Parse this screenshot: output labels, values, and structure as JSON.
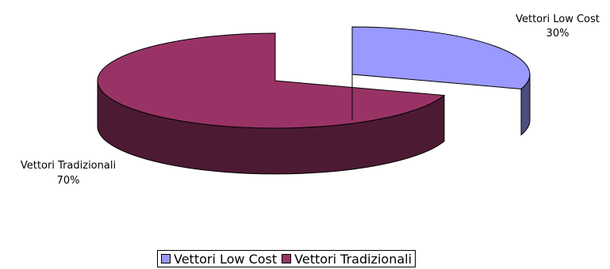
{
  "chart_data": {
    "type": "pie",
    "title": "",
    "is_3d": true,
    "slices": [
      {
        "label": "Vettori Low Cost",
        "value": 30,
        "value_label": "30%",
        "color": "#9999ff",
        "side_color": "#4d4d80",
        "exploded": true
      },
      {
        "label": "Vettori Tradizionali",
        "value": 70,
        "value_label": "70%",
        "color": "#993366",
        "side_color": "#4d1a33",
        "exploded": false
      }
    ],
    "legend": {
      "position": "bottom"
    }
  }
}
